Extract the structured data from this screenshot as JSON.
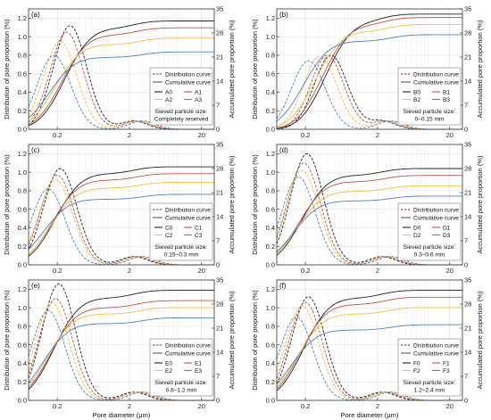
{
  "figure": {
    "ylabel_left": "Distribution of pore proportion (%)",
    "ylabel_right": "Accumulated pore proportion (%)",
    "xlabel": "Pore diameter (μm)"
  },
  "chart_data": [
    {
      "type": "line",
      "panel": "(a)",
      "xlabel": "",
      "ylabel": "Distribution of pore proportion (%)",
      "y2label": "Accumulated pore proportion (%)",
      "x_scale": "log",
      "x_ticks": [
        0.2,
        2,
        20
      ],
      "xlim": [
        0.08,
        30
      ],
      "ylim": [
        0,
        1.3
      ],
      "y_ticks": [
        0,
        0.2,
        0.4,
        0.6,
        0.8,
        1.0,
        1.2
      ],
      "y2lim": [
        0,
        35
      ],
      "y2_ticks": [
        0,
        7,
        14,
        21,
        28,
        35
      ],
      "grid": true,
      "legend_position": "bottom-right",
      "legend": {
        "line1": "Distribution curve",
        "line2": "Cumulative curve",
        "entries": [
          "A0",
          "A1",
          "A2",
          "A3"
        ],
        "note1": "Sieved particle size:",
        "note2": "Completely reserved"
      },
      "series": [
        {
          "name": "A0",
          "color": "#222222",
          "dist_peak_x": 0.3,
          "dist_peak_y": 1.12,
          "cum_max": 31.5
        },
        {
          "name": "A1",
          "color": "#c0504d",
          "dist_peak_x": 0.27,
          "dist_peak_y": 1.05,
          "cum_max": 29.5
        },
        {
          "name": "A2",
          "color": "#f0c040",
          "dist_peak_x": 0.22,
          "dist_peak_y": 0.95,
          "cum_max": 26.5
        },
        {
          "name": "A3",
          "color": "#4f81bd",
          "dist_peak_x": 0.18,
          "dist_peak_y": 0.8,
          "cum_max": 22.5
        }
      ]
    },
    {
      "type": "line",
      "panel": "(b)",
      "xlabel": "",
      "ylabel": "Distribution of pore proportion (%)",
      "y2label": "Accumulated pore proportion (%)",
      "x_scale": "log",
      "x_ticks": [
        0.2,
        2,
        20
      ],
      "xlim": [
        0.08,
        30
      ],
      "ylim": [
        0,
        1.3
      ],
      "y_ticks": [
        0,
        0.2,
        0.4,
        0.6,
        0.8,
        1.0,
        1.2
      ],
      "y2lim": [
        0,
        35
      ],
      "y2_ticks": [
        0,
        7,
        14,
        21,
        28,
        35
      ],
      "grid": true,
      "legend_position": "bottom-right",
      "legend": {
        "line1": "Distribution curve",
        "line2": "Cumulative curve",
        "entries": [
          "B0",
          "B1",
          "B2",
          "B3"
        ],
        "note1": "Sieved particle size:",
        "note2": "0–0.15 mm"
      },
      "series": [
        {
          "name": "B0",
          "color": "#222222",
          "dist_peak_x": 0.45,
          "dist_peak_y": 0.8,
          "cum_max": 33.5
        },
        {
          "name": "B1",
          "color": "#c0504d",
          "dist_peak_x": 0.4,
          "dist_peak_y": 0.8,
          "cum_max": 32.5
        },
        {
          "name": "B2",
          "color": "#f0c040",
          "dist_peak_x": 0.32,
          "dist_peak_y": 0.79,
          "cum_max": 30.5
        },
        {
          "name": "B3",
          "color": "#4f81bd",
          "dist_peak_x": 0.22,
          "dist_peak_y": 0.74,
          "cum_max": 27.5
        }
      ]
    },
    {
      "type": "line",
      "panel": "(c)",
      "xlabel": "",
      "ylabel": "Distribution of pore proportion (%)",
      "y2label": "Accumulated pore proportion (%)",
      "x_scale": "log",
      "x_ticks": [
        0.2,
        2,
        20
      ],
      "xlim": [
        0.08,
        30
      ],
      "ylim": [
        0,
        1.3
      ],
      "y_ticks": [
        0,
        0.2,
        0.4,
        0.6,
        0.8,
        1.0,
        1.2
      ],
      "y2lim": [
        0,
        35
      ],
      "y2_ticks": [
        0,
        7,
        14,
        21,
        28,
        35
      ],
      "grid": true,
      "legend_position": "bottom-right",
      "legend": {
        "line1": "Distribution curve",
        "line2": "Cumulative curve",
        "entries": [
          "C0",
          "C1",
          "C2",
          "C3"
        ],
        "note1": "Sieved particle size:",
        "note2": "0.15–0.3 mm"
      },
      "series": [
        {
          "name": "C0",
          "color": "#222222",
          "dist_peak_x": 0.22,
          "dist_peak_y": 1.04,
          "cum_max": 28.5
        },
        {
          "name": "C1",
          "color": "#c0504d",
          "dist_peak_x": 0.2,
          "dist_peak_y": 0.97,
          "cum_max": 26.5
        },
        {
          "name": "C2",
          "color": "#f0c040",
          "dist_peak_x": 0.19,
          "dist_peak_y": 0.92,
          "cum_max": 24.0
        },
        {
          "name": "C3",
          "color": "#4f81bd",
          "dist_peak_x": 0.15,
          "dist_peak_y": 0.82,
          "cum_max": 20.5
        }
      ]
    },
    {
      "type": "line",
      "panel": "(d)",
      "xlabel": "",
      "ylabel": "Distribution of pore proportion (%)",
      "y2label": "Accumulated pore proportion (%)",
      "x_scale": "log",
      "x_ticks": [
        0.2,
        2,
        20
      ],
      "xlim": [
        0.08,
        30
      ],
      "ylim": [
        0,
        1.3
      ],
      "y_ticks": [
        0,
        0.2,
        0.4,
        0.6,
        0.8,
        1.0,
        1.2
      ],
      "y2lim": [
        0,
        35
      ],
      "y2_ticks": [
        0,
        7,
        14,
        21,
        28,
        35
      ],
      "grid": true,
      "legend_position": "bottom-right",
      "legend": {
        "line1": "Distribution curve",
        "line2": "Cumulative curve",
        "entries": [
          "D0",
          "D1",
          "D2",
          "D3"
        ],
        "note1": "Sieved particle size:",
        "note2": "0.3–0.6 mm"
      },
      "series": [
        {
          "name": "D0",
          "color": "#222222",
          "dist_peak_x": 0.21,
          "dist_peak_y": 1.2,
          "cum_max": 28.0
        },
        {
          "name": "D1",
          "color": "#c0504d",
          "dist_peak_x": 0.19,
          "dist_peak_y": 1.1,
          "cum_max": 26.0
        },
        {
          "name": "D2",
          "color": "#f0c040",
          "dist_peak_x": 0.18,
          "dist_peak_y": 1.02,
          "cum_max": 23.0
        },
        {
          "name": "D3",
          "color": "#4f81bd",
          "dist_peak_x": 0.16,
          "dist_peak_y": 0.95,
          "cum_max": 20.0
        }
      ]
    },
    {
      "type": "line",
      "panel": "(e)",
      "xlabel": "Pore diameter (μm)",
      "ylabel": "Distribution of pore proportion (%)",
      "y2label": "Accumulated pore proportion (%)",
      "x_scale": "log",
      "x_ticks": [
        0.2,
        2,
        20
      ],
      "xlim": [
        0.08,
        30
      ],
      "ylim": [
        0,
        1.3
      ],
      "y_ticks": [
        0,
        0.2,
        0.4,
        0.6,
        0.8,
        1.0,
        1.2
      ],
      "y2lim": [
        0,
        35
      ],
      "y2_ticks": [
        0,
        7,
        14,
        21,
        28,
        35
      ],
      "grid": true,
      "legend_position": "bottom-right",
      "legend": {
        "line1": "Distribution curve",
        "line2": "Cumulative curve",
        "entries": [
          "E0",
          "E1",
          "E2",
          "E3"
        ],
        "note1": "Sieved particle size:",
        "note2": "0.6–1.2 mm"
      },
      "series": [
        {
          "name": "E0",
          "color": "#222222",
          "dist_peak_x": 0.21,
          "dist_peak_y": 1.26,
          "cum_max": 32.0
        },
        {
          "name": "E1",
          "color": "#c0504d",
          "dist_peak_x": 0.19,
          "dist_peak_y": 1.1,
          "cum_max": 29.0
        },
        {
          "name": "E2",
          "color": "#f0c040",
          "dist_peak_x": 0.17,
          "dist_peak_y": 1.05,
          "cum_max": 27.0
        },
        {
          "name": "E3",
          "color": "#4f81bd",
          "dist_peak_x": 0.15,
          "dist_peak_y": 0.97,
          "cum_max": 24.0
        }
      ]
    },
    {
      "type": "line",
      "panel": "(f)",
      "xlabel": "Pore diameter (μm)",
      "ylabel": "Distribution of pore proportion (%)",
      "y2label": "Accumulated pore proportion (%)",
      "x_scale": "log",
      "x_ticks": [
        0.2,
        2,
        20
      ],
      "xlim": [
        0.08,
        30
      ],
      "ylim": [
        0,
        1.3
      ],
      "y_ticks": [
        0,
        0.2,
        0.4,
        0.6,
        0.8,
        1.0,
        1.2
      ],
      "y2lim": [
        0,
        35
      ],
      "y2_ticks": [
        0,
        7,
        14,
        21,
        28,
        35
      ],
      "grid": true,
      "legend_position": "bottom-right",
      "legend": {
        "line1": "Distribution curve",
        "line2": "Cumulative curve",
        "entries": [
          "F0",
          "F1",
          "F2",
          "F3"
        ],
        "note1": "Sieved particle size:",
        "note2": "1.2–2.4 mm"
      },
      "series": [
        {
          "name": "F0",
          "color": "#222222",
          "dist_peak_x": 0.22,
          "dist_peak_y": 1.12,
          "cum_max": 32.0
        },
        {
          "name": "F1",
          "color": "#c0504d",
          "dist_peak_x": 0.2,
          "dist_peak_y": 1.06,
          "cum_max": 30.0
        },
        {
          "name": "F2",
          "color": "#f0c040",
          "dist_peak_x": 0.18,
          "dist_peak_y": 1.02,
          "cum_max": 27.0
        },
        {
          "name": "F3",
          "color": "#4f81bd",
          "dist_peak_x": 0.15,
          "dist_peak_y": 0.9,
          "cum_max": 22.0
        }
      ]
    }
  ]
}
